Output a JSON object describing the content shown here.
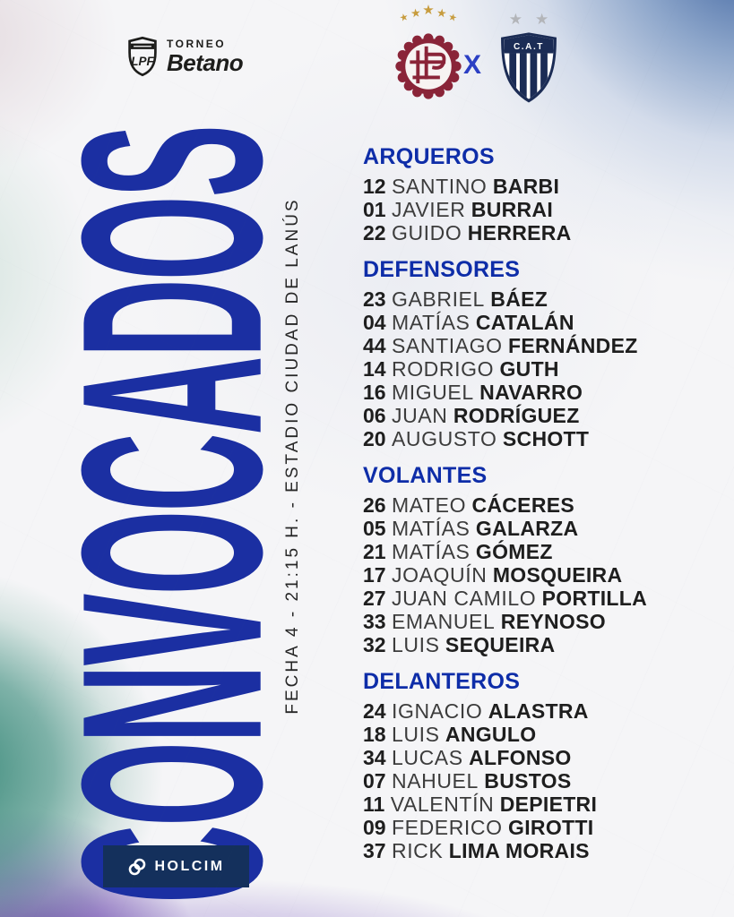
{
  "header": {
    "lpf_monogram": "LPF",
    "torneo_label": "TORNEO",
    "betano_label": "Betano",
    "versus_label": "X",
    "home_stars": 5,
    "away_stars": 2,
    "away_badge_label": "C.A.T",
    "star_glyph": "★"
  },
  "title": {
    "main": "CONVOCADOS",
    "details": "FECHA 4 - 21:15 H. - ESTADIO CIUDAD DE LANÚS"
  },
  "squad": {
    "sections": [
      {
        "label": "ARQUEROS",
        "players": [
          {
            "num": "12",
            "first": "SANTINO",
            "last": "BARBI"
          },
          {
            "num": "01",
            "first": "JAVIER",
            "last": "BURRAI"
          },
          {
            "num": "22",
            "first": "GUIDO",
            "last": "HERRERA"
          }
        ]
      },
      {
        "label": "DEFENSORES",
        "players": [
          {
            "num": "23",
            "first": "GABRIEL",
            "last": "BÁEZ"
          },
          {
            "num": "04",
            "first": "MATÍAS",
            "last": "CATALÁN"
          },
          {
            "num": "44",
            "first": "SANTIAGO",
            "last": "FERNÁNDEZ"
          },
          {
            "num": "14",
            "first": "RODRIGO",
            "last": "GUTH"
          },
          {
            "num": "16",
            "first": "MIGUEL",
            "last": "NAVARRO"
          },
          {
            "num": "06",
            "first": "JUAN",
            "last": "RODRÍGUEZ"
          },
          {
            "num": "20",
            "first": "AUGUSTO",
            "last": "SCHOTT"
          }
        ]
      },
      {
        "label": "VOLANTES",
        "players": [
          {
            "num": "26",
            "first": "MATEO",
            "last": "CÁCERES"
          },
          {
            "num": "05",
            "first": "MATÍAS",
            "last": "GALARZA"
          },
          {
            "num": "21",
            "first": "MATÍAS",
            "last": "GÓMEZ"
          },
          {
            "num": "17",
            "first": "JOAQUÍN",
            "last": "MOSQUEIRA"
          },
          {
            "num": "27",
            "first": "JUAN CAMILO",
            "last": "PORTILLA"
          },
          {
            "num": "33",
            "first": "EMANUEL",
            "last": "REYNOSO"
          },
          {
            "num": "32",
            "first": "LUIS",
            "last": "SEQUEIRA"
          }
        ]
      },
      {
        "label": "DELANTEROS",
        "players": [
          {
            "num": "24",
            "first": "IGNACIO",
            "last": "ALASTRA"
          },
          {
            "num": "18",
            "first": "LUIS",
            "last": "ANGULO"
          },
          {
            "num": "34",
            "first": "LUCAS",
            "last": "ALFONSO"
          },
          {
            "num": "07",
            "first": "NAHUEL",
            "last": "BUSTOS"
          },
          {
            "num": "11",
            "first": "VALENTÍN",
            "last": "DEPIETRI"
          },
          {
            "num": "09",
            "first": "FEDERICO",
            "last": "GIROTTI"
          },
          {
            "num": "37",
            "first": "RICK",
            "last": "LIMA MORAIS"
          }
        ]
      }
    ]
  },
  "sponsor": {
    "name": "HOLCIM"
  },
  "colors": {
    "title_blue": "#1b2fa2",
    "section_blue": "#0e2da8",
    "versus_blue": "#2b3fc4",
    "lanus_maroon": "#8a2438",
    "gold_star": "#c79c3e",
    "talleres_navy": "#1b2c55",
    "silver_star": "#b3b5b9",
    "sponsor_navy": "#14305c",
    "text_dark": "#1e1e1e"
  }
}
